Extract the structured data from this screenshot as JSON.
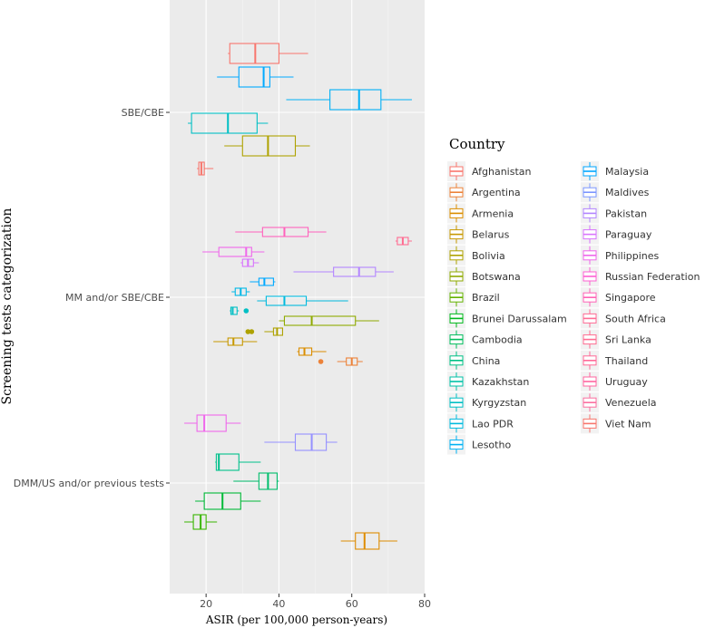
{
  "chart_data": {
    "type": "boxplot",
    "orientation": "horizontal",
    "title": "",
    "xlabel": "ASIR (per 100,000 person-years)",
    "ylabel": "Screening tests categorization",
    "xlim": [
      10,
      80
    ],
    "xticks": [
      20,
      40,
      60,
      80
    ],
    "categories": [
      "SBE/CBE",
      "MM and/or SBE/CBE",
      "DMM/US and/or previous tests"
    ],
    "legend_title": "Country",
    "legend_position": "right",
    "countries": [
      {
        "name": "Afghanistan",
        "color": "#F8766D"
      },
      {
        "name": "Argentina",
        "color": "#EC8239"
      },
      {
        "name": "Armenia",
        "color": "#DB8E00"
      },
      {
        "name": "Belarus",
        "color": "#C79800"
      },
      {
        "name": "Bolivia",
        "color": "#AEA200"
      },
      {
        "name": "Botswana",
        "color": "#8FAA00"
      },
      {
        "name": "Brazil",
        "color": "#64B200"
      },
      {
        "name": "Brunei Darussalam",
        "color": "#00B81B"
      },
      {
        "name": "Cambodia",
        "color": "#00BD5C"
      },
      {
        "name": "China",
        "color": "#00C085"
      },
      {
        "name": "Kazakhstan",
        "color": "#00C1A7"
      },
      {
        "name": "Kyrgyzstan",
        "color": "#00BFC4"
      },
      {
        "name": "Lao PDR",
        "color": "#00BADE"
      },
      {
        "name": "Lesotho",
        "color": "#00B2F3"
      },
      {
        "name": "Malaysia",
        "color": "#00A6FF"
      },
      {
        "name": "Maldives",
        "color": "#7C96FF"
      },
      {
        "name": "Pakistan",
        "color": "#B385FF"
      },
      {
        "name": "Paraguay",
        "color": "#D874FD"
      },
      {
        "name": "Philippines",
        "color": "#EF67EB"
      },
      {
        "name": "Russian Federation",
        "color": "#FD61D3"
      },
      {
        "name": "Singapore",
        "color": "#FF63B6"
      },
      {
        "name": "South Africa",
        "color": "#FF6B94"
      },
      {
        "name": "Sri Lanka",
        "color": "#FF6C91"
      },
      {
        "name": "Thailand",
        "color": "#FF6A98"
      },
      {
        "name": "Uruguay",
        "color": "#FF66A0"
      },
      {
        "name": "Venezuela",
        "color": "#FB6FA0"
      },
      {
        "name": "Viet Nam",
        "color": "#F8766D"
      }
    ],
    "boxes": [
      {
        "category": "SBE/CBE",
        "color": "#F8766D",
        "min": 26,
        "q1": 26.5,
        "median": 33.5,
        "q3": 40,
        "max": 48
      },
      {
        "category": "SBE/CBE",
        "color": "#00A9FF",
        "min": 23,
        "q1": 29,
        "median": 35.8,
        "q3": 37.5,
        "max": 44
      },
      {
        "category": "SBE/CBE",
        "color": "#00B0F6",
        "min": 42,
        "q1": 54,
        "median": 62,
        "q3": 68,
        "max": 76.5
      },
      {
        "category": "SBE/CBE",
        "color": "#00BFC4",
        "min": 15,
        "q1": 16,
        "median": 26,
        "q3": 34,
        "max": 37
      },
      {
        "category": "SBE/CBE",
        "color": "#AEA200",
        "min": 25,
        "q1": 30,
        "median": 37,
        "q3": 44.5,
        "max": 48.5
      },
      {
        "category": "SBE/CBE",
        "color": "#F8766D",
        "min": 17.5,
        "q1": 18,
        "median": 18.7,
        "q3": 19.5,
        "max": 22
      },
      {
        "category": "MM and/or SBE/CBE",
        "color": "#FF62BC",
        "min": 28,
        "q1": 35.5,
        "median": 41.5,
        "q3": 48,
        "max": 53
      },
      {
        "category": "MM and/or SBE/CBE",
        "color": "#FF6C91",
        "min": 72,
        "q1": 72.5,
        "median": 74,
        "q3": 75.5,
        "max": 76.5
      },
      {
        "category": "MM and/or SBE/CBE",
        "color": "#EF67EB",
        "min": 19,
        "q1": 23.5,
        "median": 31,
        "q3": 32.5,
        "max": 36
      },
      {
        "category": "MM and/or SBE/CBE",
        "color": "#D874FD",
        "min": 29.5,
        "q1": 30,
        "median": 31.5,
        "q3": 33,
        "max": 34.5
      },
      {
        "category": "MM and/or SBE/CBE",
        "color": "#B385FF",
        "min": 44,
        "q1": 55,
        "median": 62,
        "q3": 66.5,
        "max": 71.5
      },
      {
        "category": "MM and/or SBE/CBE",
        "color": "#00A9FF",
        "min": 32,
        "q1": 34.5,
        "median": 36,
        "q3": 38.5,
        "max": 39
      },
      {
        "category": "MM and/or SBE/CBE",
        "color": "#00B8E7",
        "min": 27,
        "q1": 28,
        "median": 29.5,
        "q3": 31,
        "max": 32
      },
      {
        "category": "MM and/or SBE/CBE",
        "color": "#00BADE",
        "min": 34,
        "q1": 36.5,
        "median": 41.5,
        "q3": 47.5,
        "max": 59
      },
      {
        "category": "MM and/or SBE/CBE",
        "color": "#00BFC4",
        "min": 26.5,
        "q1": 26.8,
        "median": 27.3,
        "q3": 28.5,
        "max": 29,
        "outliers": [
          31
        ]
      },
      {
        "category": "MM and/or SBE/CBE",
        "color": "#8FAA00",
        "min": 40,
        "q1": 41.5,
        "median": 49,
        "q3": 61,
        "max": 67.5
      },
      {
        "category": "MM and/or SBE/CBE",
        "color": "#AEA200",
        "min": 36,
        "q1": 38.5,
        "median": 39.5,
        "q3": 41,
        "max": 41,
        "outliers": [
          31.5,
          32.5
        ]
      },
      {
        "category": "MM and/or SBE/CBE",
        "color": "#C79800",
        "min": 22,
        "q1": 26,
        "median": 27.5,
        "q3": 30,
        "max": 34
      },
      {
        "category": "MM and/or SBE/CBE",
        "color": "#DB8E00",
        "min": 45,
        "q1": 45.5,
        "median": 47,
        "q3": 49,
        "max": 53
      },
      {
        "category": "MM and/or SBE/CBE",
        "color": "#EC8239",
        "min": 56,
        "q1": 58.5,
        "median": 60,
        "q3": 61.5,
        "max": 63,
        "outliers": [
          51.5
        ]
      },
      {
        "category": "DMM/US and/or previous tests",
        "color": "#EF67EB",
        "min": 14,
        "q1": 17.5,
        "median": 19.5,
        "q3": 25.5,
        "max": 29.5
      },
      {
        "category": "DMM/US and/or previous tests",
        "color": "#9590FF",
        "min": 36,
        "q1": 44.5,
        "median": 49,
        "q3": 53,
        "max": 56
      },
      {
        "category": "DMM/US and/or previous tests",
        "color": "#00C08B",
        "min": 22.5,
        "q1": 22.8,
        "median": 23.5,
        "q3": 29,
        "max": 35
      },
      {
        "category": "DMM/US and/or previous tests",
        "color": "#00BE6C",
        "min": 27.5,
        "q1": 34.5,
        "median": 37,
        "q3": 39.5,
        "max": 40
      },
      {
        "category": "DMM/US and/or previous tests",
        "color": "#00BA38",
        "min": 17,
        "q1": 19.5,
        "median": 24.5,
        "q3": 29.5,
        "max": 35
      },
      {
        "category": "DMM/US and/or previous tests",
        "color": "#39B600",
        "min": 14,
        "q1": 16.5,
        "median": 18.5,
        "q3": 20,
        "max": 23
      },
      {
        "category": "DMM/US and/or previous tests",
        "color": "#DE8C00",
        "min": 57,
        "q1": 61,
        "median": 63.5,
        "q3": 67.5,
        "max": 72.5
      }
    ]
  }
}
